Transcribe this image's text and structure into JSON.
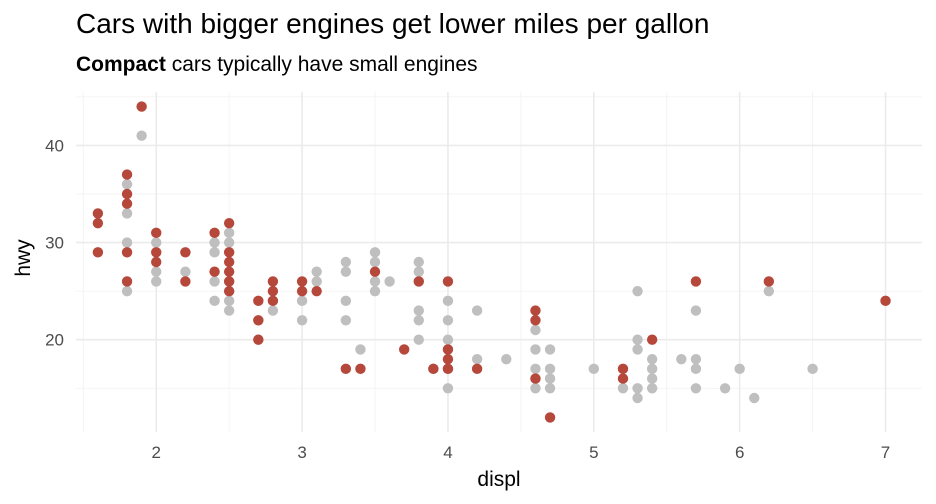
{
  "chart_data": {
    "type": "scatter",
    "title": "Cars with bigger engines get lower miles per gallon",
    "subtitle_highlight": "Compact",
    "subtitle_rest": " cars typically have small engines",
    "xlabel": "displ",
    "ylabel": "hwy",
    "xlim": [
      1.45,
      7.25
    ],
    "ylim": [
      10.5,
      45.5
    ],
    "x_ticks": [
      2,
      3,
      4,
      5,
      6,
      7
    ],
    "y_ticks": [
      20,
      30,
      40
    ],
    "grid": true,
    "colors": {
      "highlight": "#b5483b",
      "other": "#bfbfbf"
    },
    "series": [
      {
        "name": "other",
        "points": [
          [
            1.8,
            25
          ],
          [
            1.8,
            30
          ],
          [
            1.8,
            33
          ],
          [
            1.8,
            36
          ],
          [
            1.9,
            41
          ],
          [
            2.0,
            26
          ],
          [
            2.0,
            27
          ],
          [
            2.0,
            30
          ],
          [
            2.2,
            27
          ],
          [
            2.4,
            24
          ],
          [
            2.4,
            26
          ],
          [
            2.4,
            29
          ],
          [
            2.4,
            30
          ],
          [
            2.5,
            23
          ],
          [
            2.5,
            24
          ],
          [
            2.5,
            25
          ],
          [
            2.5,
            26
          ],
          [
            2.5,
            30
          ],
          [
            2.5,
            31
          ],
          [
            2.7,
            20
          ],
          [
            2.7,
            22
          ],
          [
            2.8,
            23
          ],
          [
            3.0,
            22
          ],
          [
            3.0,
            24
          ],
          [
            3.1,
            26
          ],
          [
            3.1,
            27
          ],
          [
            3.3,
            22
          ],
          [
            3.3,
            24
          ],
          [
            3.3,
            27
          ],
          [
            3.3,
            28
          ],
          [
            3.4,
            19
          ],
          [
            3.5,
            25
          ],
          [
            3.5,
            26
          ],
          [
            3.5,
            28
          ],
          [
            3.5,
            29
          ],
          [
            3.6,
            26
          ],
          [
            3.8,
            20
          ],
          [
            3.8,
            22
          ],
          [
            3.8,
            23
          ],
          [
            3.8,
            26
          ],
          [
            3.8,
            27
          ],
          [
            3.8,
            28
          ],
          [
            3.9,
            17
          ],
          [
            4.0,
            15
          ],
          [
            4.0,
            17
          ],
          [
            4.0,
            19
          ],
          [
            4.0,
            20
          ],
          [
            4.0,
            22
          ],
          [
            4.0,
            24
          ],
          [
            4.2,
            18
          ],
          [
            4.2,
            23
          ],
          [
            4.4,
            18
          ],
          [
            4.6,
            15
          ],
          [
            4.6,
            16
          ],
          [
            4.6,
            17
          ],
          [
            4.6,
            19
          ],
          [
            4.6,
            21
          ],
          [
            4.7,
            15
          ],
          [
            4.7,
            16
          ],
          [
            4.7,
            17
          ],
          [
            4.7,
            19
          ],
          [
            5.0,
            17
          ],
          [
            5.2,
            15
          ],
          [
            5.3,
            14
          ],
          [
            5.3,
            15
          ],
          [
            5.3,
            19
          ],
          [
            5.3,
            20
          ],
          [
            5.3,
            25
          ],
          [
            5.4,
            15
          ],
          [
            5.4,
            16
          ],
          [
            5.4,
            17
          ],
          [
            5.4,
            18
          ],
          [
            5.6,
            18
          ],
          [
            5.7,
            15
          ],
          [
            5.7,
            17
          ],
          [
            5.7,
            18
          ],
          [
            5.7,
            23
          ],
          [
            5.9,
            15
          ],
          [
            6.0,
            17
          ],
          [
            6.1,
            14
          ],
          [
            6.2,
            25
          ],
          [
            6.5,
            17
          ]
        ]
      },
      {
        "name": "Compact",
        "points": [
          [
            1.6,
            29
          ],
          [
            1.6,
            32
          ],
          [
            1.6,
            33
          ],
          [
            1.8,
            26
          ],
          [
            1.8,
            29
          ],
          [
            1.8,
            34
          ],
          [
            1.8,
            35
          ],
          [
            1.8,
            37
          ],
          [
            1.9,
            44
          ],
          [
            2.0,
            28
          ],
          [
            2.0,
            29
          ],
          [
            2.0,
            31
          ],
          [
            2.2,
            26
          ],
          [
            2.2,
            29
          ],
          [
            2.4,
            27
          ],
          [
            2.4,
            31
          ],
          [
            2.5,
            25
          ],
          [
            2.5,
            26
          ],
          [
            2.5,
            27
          ],
          [
            2.5,
            28
          ],
          [
            2.5,
            29
          ],
          [
            2.5,
            32
          ],
          [
            2.7,
            20
          ],
          [
            2.7,
            22
          ],
          [
            2.7,
            24
          ],
          [
            2.8,
            24
          ],
          [
            2.8,
            25
          ],
          [
            2.8,
            26
          ],
          [
            3.0,
            25
          ],
          [
            3.0,
            26
          ],
          [
            3.1,
            25
          ],
          [
            3.3,
            17
          ],
          [
            3.4,
            17
          ],
          [
            3.5,
            27
          ],
          [
            3.7,
            19
          ],
          [
            3.8,
            26
          ],
          [
            3.9,
            17
          ],
          [
            4.0,
            17
          ],
          [
            4.0,
            18
          ],
          [
            4.0,
            19
          ],
          [
            4.0,
            26
          ],
          [
            4.2,
            17
          ],
          [
            4.6,
            16
          ],
          [
            4.6,
            22
          ],
          [
            4.6,
            23
          ],
          [
            4.7,
            12
          ],
          [
            5.2,
            16
          ],
          [
            5.2,
            17
          ],
          [
            5.4,
            20
          ],
          [
            5.7,
            26
          ],
          [
            6.2,
            26
          ],
          [
            7.0,
            24
          ]
        ]
      }
    ]
  }
}
